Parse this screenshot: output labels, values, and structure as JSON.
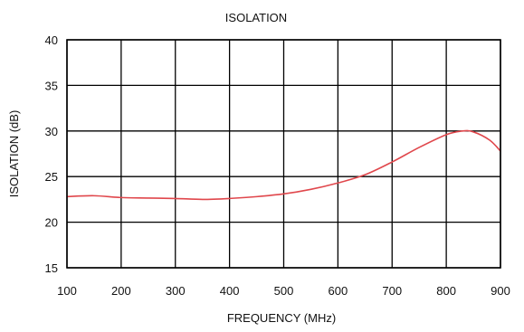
{
  "chart_data": {
    "type": "line",
    "title": "ISOLATION",
    "xlabel": "FREQUENCY (MHz)",
    "ylabel": "ISOLATION (dB)",
    "xlim": [
      100,
      900
    ],
    "ylim": [
      15,
      40
    ],
    "x_ticks": [
      100,
      200,
      300,
      400,
      500,
      600,
      700,
      800,
      900
    ],
    "y_ticks": [
      15,
      20,
      25,
      30,
      35,
      40
    ],
    "grid": true,
    "series": [
      {
        "color": "#e0474c",
        "x": [
          100,
          150,
          200,
          250,
          300,
          350,
          400,
          450,
          500,
          550,
          600,
          650,
          700,
          750,
          800,
          830,
          850,
          880,
          900
        ],
        "y": [
          22.8,
          22.9,
          22.7,
          22.65,
          22.6,
          22.5,
          22.6,
          22.8,
          23.1,
          23.6,
          24.3,
          25.2,
          26.6,
          28.2,
          29.6,
          30.0,
          29.9,
          29.0,
          27.8
        ]
      }
    ]
  }
}
